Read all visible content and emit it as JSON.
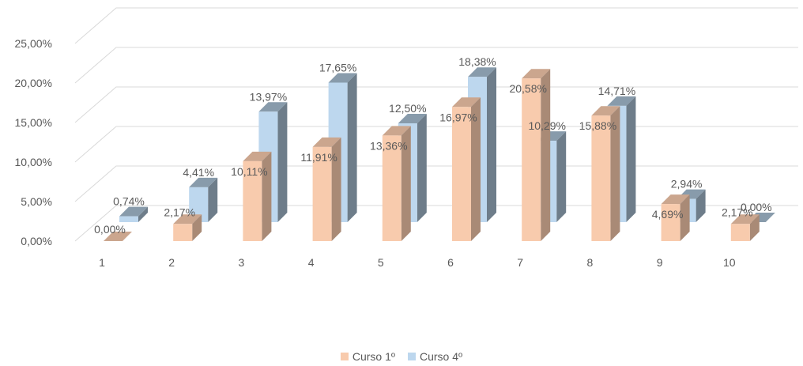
{
  "chart_data": {
    "type": "bar",
    "categories": [
      "1",
      "2",
      "3",
      "4",
      "5",
      "6",
      "7",
      "8",
      "9",
      "10"
    ],
    "series": [
      {
        "name": "Curso 1º",
        "values": [
          0.0,
          2.17,
          10.11,
          11.91,
          13.36,
          16.97,
          20.58,
          15.88,
          4.69,
          2.17
        ],
        "labels": [
          "0,00%",
          "2,17%",
          "10,11%",
          "11,91%",
          "13,36%",
          "16,97%",
          "20,58%",
          "15,88%",
          "4,69%",
          "2,17%"
        ],
        "color": "#F8CBAD"
      },
      {
        "name": "Curso 4º",
        "values": [
          0.74,
          4.41,
          13.97,
          17.65,
          12.5,
          18.38,
          10.29,
          14.71,
          2.94,
          0.0
        ],
        "labels": [
          "0,74%",
          "4,41%",
          "13,97%",
          "17,65%",
          "12,50%",
          "18,38%",
          "10,29%",
          "14,71%",
          "2,94%",
          "0,00%"
        ],
        "color": "#BDD7EE"
      }
    ],
    "y_ticks": [
      0,
      5,
      10,
      15,
      20,
      25
    ],
    "y_tick_labels": [
      "0,00%",
      "5,00%",
      "10,00%",
      "15,00%",
      "20,00%",
      "25,00%"
    ],
    "ylim": [
      0,
      25
    ],
    "grid": true,
    "legend": "bottom",
    "three_d": true
  },
  "legend": [
    {
      "label": "Curso 1º",
      "color": "#F8CBAD"
    },
    {
      "label": "Curso 4º",
      "color": "#BDD7EE"
    }
  ]
}
